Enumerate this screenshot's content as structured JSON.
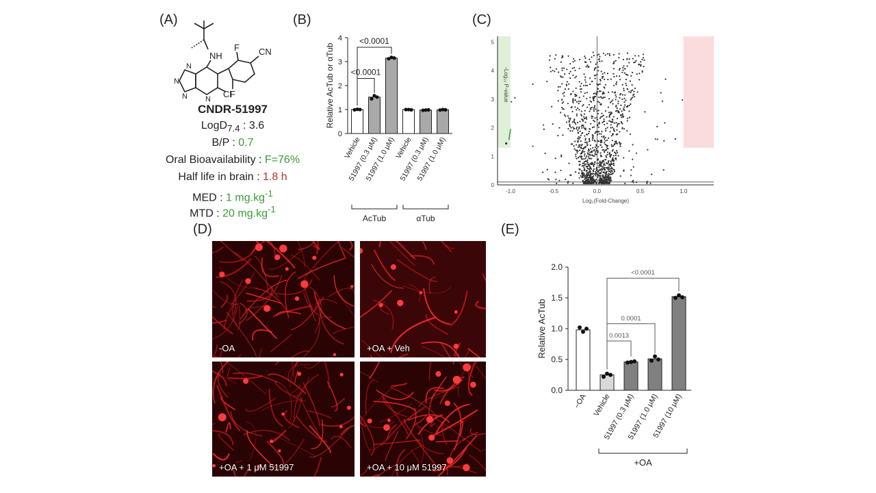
{
  "panel_letters": {
    "A": "(A)",
    "B": "(B)",
    "C": "(C)",
    "D": "(D)",
    "E": "(E)"
  },
  "compound": {
    "atom_labels": {
      "nh": "NH",
      "f1": "F",
      "f2": "F",
      "cn": "CN",
      "cl": "Cl",
      "n1": "N",
      "n2": "N",
      "n3": "N",
      "n4": "N"
    },
    "name": "CNDR-51997",
    "logd_label": "LogD",
    "logd_sub": "7.4",
    "logd_value": " : 3.6",
    "bp_label": "B/P : ",
    "bp_value": "0.7",
    "oral_label": "Oral Bioavailability : ",
    "oral_value": "F=76%",
    "half_label": "Half life in brain : ",
    "half_value": "1.8 h",
    "med_label": "MED : ",
    "med_value": "1 mg.kg",
    "med_sup": "-1",
    "mtd_label": "MTD : ",
    "mtd_value": "20 mg.kg",
    "mtd_sup": "-1",
    "colors": {
      "good": "#3a9a35",
      "warn": "#c0302a"
    }
  },
  "chart_data": [
    {
      "id": "B",
      "type": "bar",
      "ylabel": "Relative AcTub or αTub",
      "ylim": [
        0,
        4
      ],
      "yticks": [
        "0",
        "1",
        "2",
        "3",
        "4"
      ],
      "categories": [
        "Vehicle",
        "51997 (0.3 μM)",
        "51997 (1.0 μM)",
        "Vehicle",
        "51997 (0.3 μM)",
        "51997 (1.0 μM)"
      ],
      "values": [
        1.0,
        1.52,
        3.15,
        1.0,
        0.98,
        0.99
      ],
      "points": [
        [
          0.99,
          1.01,
          1.0
        ],
        [
          1.45,
          1.58,
          1.52
        ],
        [
          3.12,
          3.18,
          3.15
        ],
        [
          1.0,
          1.0,
          0.99
        ],
        [
          0.97,
          0.98,
          0.99
        ],
        [
          0.98,
          1.0,
          0.99
        ]
      ],
      "bar_colors": [
        "#ffffff",
        "#a9a9a9",
        "#a9a9a9",
        "#ffffff",
        "#a9a9a9",
        "#a9a9a9"
      ],
      "groups": [
        {
          "label": "AcTub"
        },
        {
          "label": "αTub"
        }
      ],
      "comparisons": [
        {
          "label": "<0.0001"
        },
        {
          "label": "<0.0001"
        }
      ]
    },
    {
      "id": "C",
      "type": "scatter",
      "xlabel": "Log₂(Fold-Change)",
      "ylabel": "-Log₁₀ P-value",
      "xlim": [
        -1.15,
        1.35
      ],
      "ylim": [
        0,
        5.2
      ],
      "xticks": [
        "-1.0",
        "-0.5",
        "0.0",
        "0.5",
        "1.0"
      ],
      "yticks": [
        "0",
        "1",
        "2",
        "3",
        "4",
        "5"
      ],
      "regions": {
        "down_color": "#dff0d8",
        "up_color": "#fbdcdc"
      },
      "marker_color": "#3a9a35"
    },
    {
      "id": "E",
      "type": "bar",
      "ylabel": "Relative AcTub",
      "ylim": [
        0,
        2.0
      ],
      "yticks": [
        "0.0",
        "0.5",
        "1.0",
        "1.5",
        "2.0"
      ],
      "categories": [
        "−OA",
        "Vehicle",
        "51997 (0.3 μM)",
        "51997 (1.0 μM)",
        "51997 (10 μM)"
      ],
      "values": [
        0.98,
        0.25,
        0.46,
        0.51,
        1.52
      ],
      "points": [
        [
          1.02,
          0.95,
          1.0
        ],
        [
          0.22,
          0.27,
          0.25
        ],
        [
          0.45,
          0.46,
          0.47
        ],
        [
          0.48,
          0.55,
          0.5
        ],
        [
          1.5,
          1.54,
          1.51
        ]
      ],
      "bar_colors": [
        "#ffffff",
        "#d9d9d9",
        "#808080",
        "#808080",
        "#808080"
      ],
      "group_label": "+OA",
      "comparisons": [
        {
          "label": "0.0013"
        },
        {
          "label": "0.0001"
        },
        {
          "label": "<0.0001"
        }
      ]
    }
  ],
  "micrographs": [
    {
      "label": "-OA"
    },
    {
      "label": "+OA + Veh"
    },
    {
      "label": "+OA + 1 μM 51997"
    },
    {
      "label": "+OA + 10 μM 51997"
    }
  ]
}
